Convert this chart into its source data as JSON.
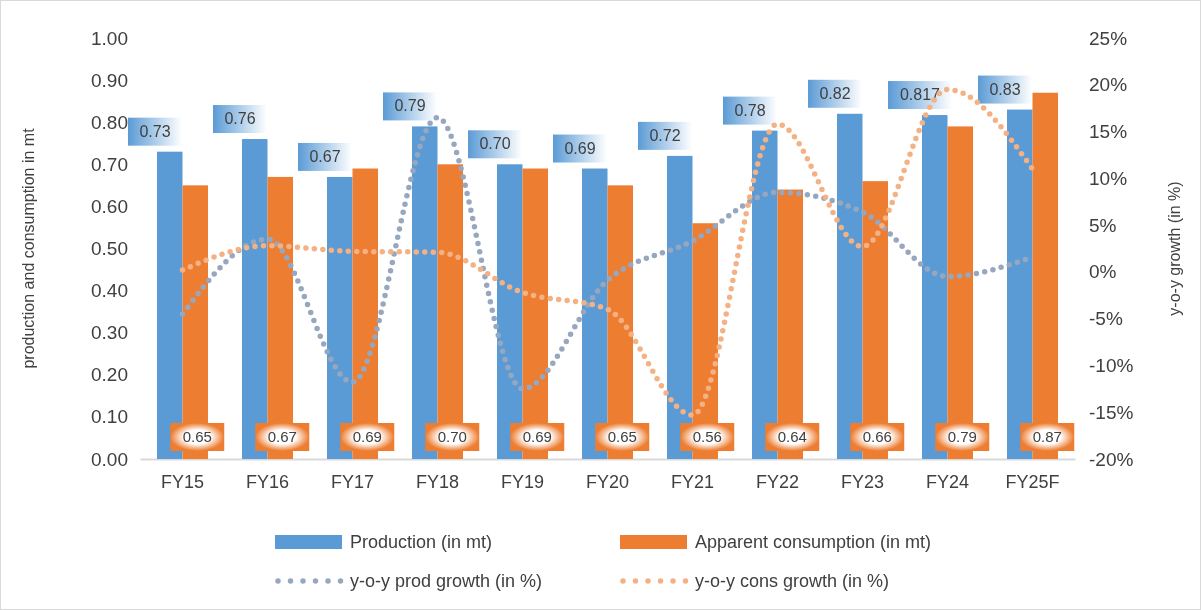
{
  "chart_data": {
    "type": "bar",
    "ylabel": "production and consumption in mt",
    "y2label": "y-o-y growth (in %)",
    "categories": [
      "FY15",
      "FY16",
      "FY17",
      "FY18",
      "FY19",
      "FY20",
      "FY21",
      "FY22",
      "FY23",
      "FY24",
      "FY25F"
    ],
    "series": [
      {
        "name": "Production (in mt)",
        "color": "#5b9bd5",
        "values": [
          0.73,
          0.76,
          0.67,
          0.79,
          0.7,
          0.69,
          0.72,
          0.78,
          0.82,
          0.817,
          0.83
        ],
        "value_labels": [
          "0.73",
          "0.76",
          "0.67",
          "0.79",
          "0.70",
          "0.69",
          "0.72",
          "0.78",
          "0.82",
          "0.817",
          "0.83"
        ]
      },
      {
        "name": "Apparent consumption (in mt)",
        "color": "#ed7d31",
        "values": [
          0.65,
          0.67,
          0.69,
          0.7,
          0.69,
          0.65,
          0.56,
          0.64,
          0.66,
          0.79,
          0.87
        ],
        "value_labels": [
          "0.65",
          "0.67",
          "0.69",
          "0.70",
          "0.69",
          "0.65",
          "0.56",
          "0.64",
          "0.66",
          "0.79",
          "0.87"
        ]
      },
      {
        "name": "y-o-y prod growth (in  %)",
        "type": "line",
        "axis": "y2",
        "color": "#97a7bf",
        "line_style": "dotted",
        "values": [
          -4.5,
          3.5,
          -11.8,
          16.5,
          -12.5,
          -0.9,
          3.3,
          8.5,
          6.4,
          -0.5,
          1.6
        ]
      },
      {
        "name": "y-o-y cons growth (in  %)",
        "type": "line",
        "axis": "y2",
        "color": "#f4b183",
        "line_style": "dotted",
        "values": [
          0.2,
          2.8,
          2.2,
          2.1,
          -2.2,
          -4.0,
          -15.3,
          15.8,
          2.7,
          19.5,
          11.0
        ]
      }
    ],
    "ylim": [
      0,
      1
    ],
    "yticks": [
      {
        "value": 0,
        "label": "0.00"
      },
      {
        "value": 0.1,
        "label": "0.10"
      },
      {
        "value": 0.2,
        "label": "0.20"
      },
      {
        "value": 0.3,
        "label": "0.30"
      },
      {
        "value": 0.4,
        "label": "0.40"
      },
      {
        "value": 0.5,
        "label": "0.50"
      },
      {
        "value": 0.6,
        "label": "0.60"
      },
      {
        "value": 0.7,
        "label": "0.70"
      },
      {
        "value": 0.8,
        "label": "0.80"
      },
      {
        "value": 0.9,
        "label": "0.90"
      },
      {
        "value": 1,
        "label": "1.00"
      }
    ],
    "y2lim": [
      -20,
      25
    ],
    "y2ticks": [
      {
        "value": -20,
        "label": "-20%"
      },
      {
        "value": -15,
        "label": "-15%"
      },
      {
        "value": -10,
        "label": "-10%"
      },
      {
        "value": -5,
        "label": "-5%"
      },
      {
        "value": 0,
        "label": "0%"
      },
      {
        "value": 5,
        "label": "5%"
      },
      {
        "value": 10,
        "label": "10%"
      },
      {
        "value": 15,
        "label": "15%"
      },
      {
        "value": 20,
        "label": "20%"
      },
      {
        "value": 25,
        "label": "25%"
      }
    ],
    "grid": false,
    "legend": "bottom",
    "marker": "none"
  }
}
